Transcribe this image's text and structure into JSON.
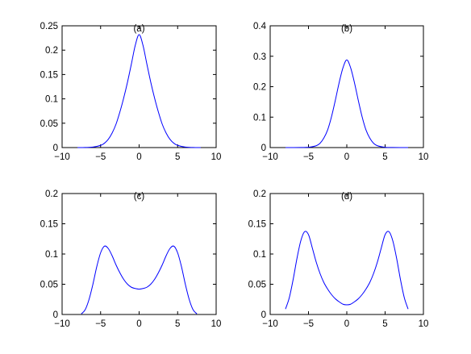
{
  "chart_data": [
    {
      "type": "line",
      "title": "(a)",
      "xlim": [
        -10,
        10
      ],
      "ylim": [
        0,
        0.25
      ],
      "xticks": [
        "−10",
        "−5",
        "0",
        "5",
        "10"
      ],
      "yticks": [
        "0",
        "0.05",
        "0.1",
        "0.15",
        "0.2",
        "0.25"
      ],
      "series": [
        {
          "color": "#0000ff",
          "x": [
            -8,
            -7,
            -6,
            -5,
            -4.5,
            -4,
            -3.5,
            -3,
            -2.5,
            -2,
            -1.5,
            -1,
            -0.5,
            0,
            0.5,
            1,
            1.5,
            2,
            2.5,
            3,
            3.5,
            4,
            4.5,
            5,
            6,
            7,
            8
          ],
          "y": [
            0.0,
            0.0002,
            0.001,
            0.0045,
            0.009,
            0.017,
            0.03,
            0.048,
            0.073,
            0.102,
            0.135,
            0.172,
            0.21,
            0.232,
            0.21,
            0.172,
            0.135,
            0.102,
            0.073,
            0.048,
            0.03,
            0.017,
            0.009,
            0.0045,
            0.001,
            0.0002,
            0.0
          ]
        }
      ]
    },
    {
      "type": "line",
      "title": "(b)",
      "xlim": [
        -10,
        10
      ],
      "ylim": [
        0,
        0.4
      ],
      "xticks": [
        "−10",
        "−5",
        "0",
        "5",
        "10"
      ],
      "yticks": [
        "0",
        "0.1",
        "0.2",
        "0.3",
        "0.4"
      ],
      "series": [
        {
          "color": "#0000ff",
          "x": [
            -8,
            -6,
            -5,
            -4,
            -3.5,
            -3,
            -2.5,
            -2,
            -1.5,
            -1,
            -0.5,
            0,
            0.5,
            1,
            1.5,
            2,
            2.5,
            3,
            3.5,
            4,
            5,
            6,
            8
          ],
          "y": [
            0.0,
            0.0002,
            0.001,
            0.006,
            0.014,
            0.031,
            0.058,
            0.101,
            0.155,
            0.213,
            0.262,
            0.288,
            0.262,
            0.213,
            0.155,
            0.101,
            0.058,
            0.031,
            0.014,
            0.006,
            0.001,
            0.0002,
            0.0
          ]
        }
      ]
    },
    {
      "type": "line",
      "title": "(c)",
      "xlim": [
        -10,
        10
      ],
      "ylim": [
        0,
        0.2
      ],
      "xticks": [
        "−10",
        "−5",
        "0",
        "5",
        "10"
      ],
      "yticks": [
        "0",
        "0.05",
        "0.1",
        "0.15",
        "0.2"
      ],
      "series": [
        {
          "color": "#0000ff",
          "x": [
            -7.5,
            -7,
            -6.5,
            -6,
            -5.5,
            -5,
            -4.5,
            -4,
            -3.5,
            -3,
            -2.5,
            -2,
            -1.5,
            -1,
            -0.5,
            0,
            0.5,
            1,
            1.5,
            2,
            2.5,
            3,
            3.5,
            4,
            4.5,
            5,
            5.5,
            6,
            6.5,
            7,
            7.5
          ],
          "y": [
            0.001,
            0.008,
            0.025,
            0.05,
            0.079,
            0.102,
            0.113,
            0.109,
            0.097,
            0.082,
            0.069,
            0.058,
            0.05,
            0.045,
            0.043,
            0.042,
            0.043,
            0.045,
            0.05,
            0.058,
            0.069,
            0.082,
            0.097,
            0.109,
            0.113,
            0.102,
            0.079,
            0.05,
            0.025,
            0.008,
            0.001
          ]
        }
      ]
    },
    {
      "type": "line",
      "title": "(d)",
      "xlim": [
        -10,
        10
      ],
      "ylim": [
        0,
        0.2
      ],
      "xticks": [
        "−10",
        "−5",
        "0",
        "5",
        "10"
      ],
      "yticks": [
        "0",
        "0.05",
        "0.1",
        "0.15",
        "0.2"
      ],
      "series": [
        {
          "color": "#0000ff",
          "x": [
            -8,
            -7.5,
            -7,
            -6.5,
            -6,
            -5.5,
            -5,
            -4.5,
            -4,
            -3.5,
            -3,
            -2.5,
            -2,
            -1.5,
            -1,
            -0.5,
            0,
            0.5,
            1,
            1.5,
            2,
            2.5,
            3,
            3.5,
            4,
            4.5,
            5,
            5.5,
            6,
            6.5,
            7,
            7.5,
            8
          ],
          "y": [
            0.009,
            0.028,
            0.058,
            0.093,
            0.122,
            0.137,
            0.132,
            0.11,
            0.087,
            0.068,
            0.053,
            0.042,
            0.033,
            0.026,
            0.021,
            0.017,
            0.016,
            0.017,
            0.021,
            0.026,
            0.033,
            0.042,
            0.053,
            0.068,
            0.087,
            0.11,
            0.132,
            0.137,
            0.122,
            0.093,
            0.058,
            0.028,
            0.009
          ]
        }
      ]
    }
  ]
}
